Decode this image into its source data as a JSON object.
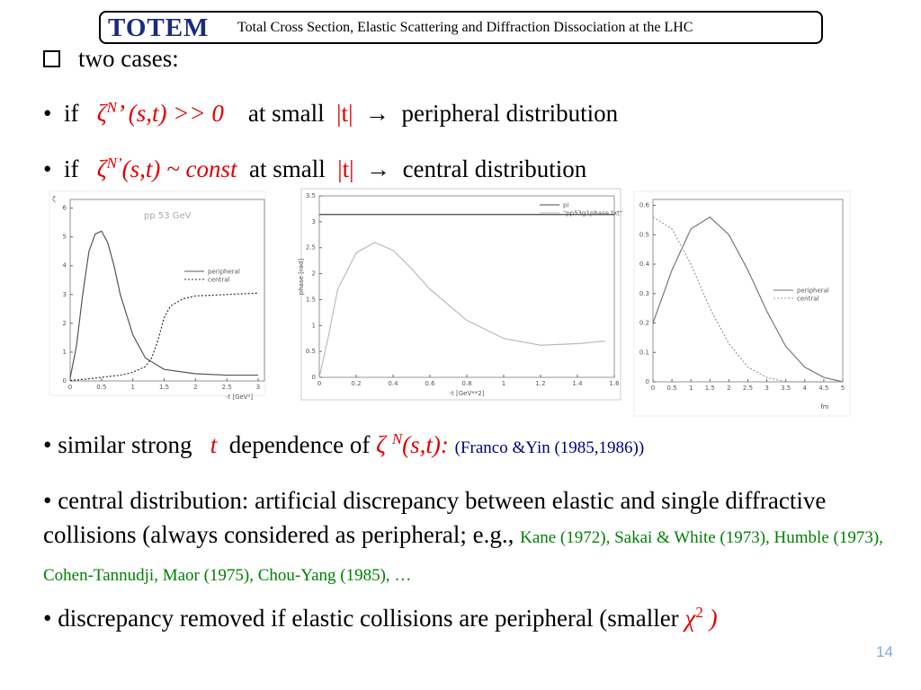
{
  "header": {
    "logo": "TOTEM",
    "title": "Total Cross Section, Elastic Scattering and Diffraction Dissociation at the LHC"
  },
  "slide": {
    "heading": "two cases:",
    "bullets": [
      [
        "if",
        "ζ",
        "N",
        "’ (s,t) >> 0",
        "at small",
        "|t|",
        "→",
        "peripheral distribution"
      ],
      [
        "if",
        "ζ",
        "N",
        "’",
        "(s,t) ~",
        "const",
        "at small",
        "|t|",
        "→",
        "central distribution"
      ],
      [
        "similar strong",
        "t",
        "dependence of",
        "ζ",
        "N",
        "(s,t):",
        "(Franco &Yin (1985,1986))"
      ],
      [
        "central distribution: artificial discrepancy between elastic and single diffractive collisions (always considered as peripheral; e.g.,",
        "Kane (1972), Sakai & White (1973), Humble (1973), Cohen-Tannudji, Maor (1975), Chou-Yang (1985), …"
      ],
      [
        "discrepancy removed if elastic collisions are peripheral (smaller",
        "χ",
        "2",
        ")"
      ]
    ]
  },
  "plots": [
    {
      "type": "line",
      "ylabel": "ζ",
      "annotation": "pp 53 GeV",
      "xlabel": "-t [GeV²]",
      "xlim": [
        0,
        3.1
      ],
      "ylim": [
        0,
        6.3
      ],
      "xticks": [
        0,
        0.5,
        1,
        1.5,
        2,
        2.5,
        3
      ],
      "yticks": [
        0,
        1,
        2,
        3,
        4,
        5,
        6
      ],
      "series": [
        {
          "name": "peripheral",
          "color": "#555555",
          "dashed": false,
          "x": [
            0,
            0.1,
            0.2,
            0.3,
            0.4,
            0.5,
            0.6,
            0.7,
            0.8,
            1.0,
            1.2,
            1.5,
            2,
            2.5,
            3
          ],
          "values": [
            0.1,
            1.2,
            3.0,
            4.5,
            5.1,
            5.2,
            4.8,
            4.0,
            3.0,
            1.6,
            0.8,
            0.4,
            0.25,
            0.2,
            0.2
          ]
        },
        {
          "name": "central",
          "color": "#333333",
          "dashed": true,
          "x": [
            0,
            0.2,
            0.4,
            0.6,
            0.8,
            1.0,
            1.2,
            1.3,
            1.4,
            1.5,
            1.6,
            1.8,
            2.0,
            2.5,
            3.0
          ],
          "values": [
            0.02,
            0.05,
            0.1,
            0.15,
            0.2,
            0.3,
            0.5,
            0.8,
            1.4,
            2.2,
            2.6,
            2.85,
            2.95,
            3.0,
            3.05
          ]
        }
      ]
    },
    {
      "type": "line",
      "ylabel": "phase [rad]",
      "xlabel": "-t [GeV**2]",
      "xlim": [
        0,
        1.6
      ],
      "ylim": [
        0,
        3.5
      ],
      "xticks": [
        0,
        0.2,
        0.4,
        0.6,
        0.8,
        1,
        1.2,
        1.4,
        1.6
      ],
      "yticks": [
        0,
        0.5,
        1,
        1.5,
        2,
        2.5,
        3,
        3.5
      ],
      "series": [
        {
          "name": "pi",
          "color": "#444444",
          "dashed": false,
          "x": [
            0,
            1.6
          ],
          "values": [
            3.14,
            3.14
          ]
        },
        {
          "name": "\"pp53g1phase.txt\"",
          "color": "#bbbbbb",
          "dashed": false,
          "x": [
            0,
            0.05,
            0.1,
            0.2,
            0.3,
            0.4,
            0.5,
            0.6,
            0.8,
            1.0,
            1.2,
            1.4,
            1.55
          ],
          "values": [
            0,
            0.8,
            1.7,
            2.4,
            2.6,
            2.45,
            2.1,
            1.7,
            1.1,
            0.75,
            0.62,
            0.65,
            0.7
          ]
        }
      ]
    },
    {
      "type": "line",
      "xlabel": "fm",
      "xlim": [
        0,
        5
      ],
      "ylim": [
        0,
        0.62
      ],
      "xticks": [
        0,
        0.5,
        1,
        1.5,
        2,
        2.5,
        3,
        3.5,
        4,
        4.5,
        5
      ],
      "yticks": [
        0,
        0.1,
        0.2,
        0.3,
        0.4,
        0.5,
        0.6
      ],
      "series": [
        {
          "name": "peripheral",
          "color": "#777777",
          "dashed": false,
          "x": [
            0,
            0.5,
            1,
            1.5,
            2,
            2.5,
            3,
            3.5,
            4,
            4.5,
            5
          ],
          "values": [
            0.2,
            0.38,
            0.52,
            0.56,
            0.5,
            0.38,
            0.24,
            0.12,
            0.05,
            0.015,
            0
          ]
        },
        {
          "name": "central",
          "color": "#999999",
          "dashed": true,
          "x": [
            0,
            0.5,
            1,
            1.5,
            2,
            2.5,
            3,
            3.5,
            4,
            4.5,
            5
          ],
          "values": [
            0.56,
            0.52,
            0.4,
            0.25,
            0.13,
            0.05,
            0.015,
            0,
            0,
            0,
            0
          ]
        }
      ]
    }
  ],
  "page_number": "14"
}
